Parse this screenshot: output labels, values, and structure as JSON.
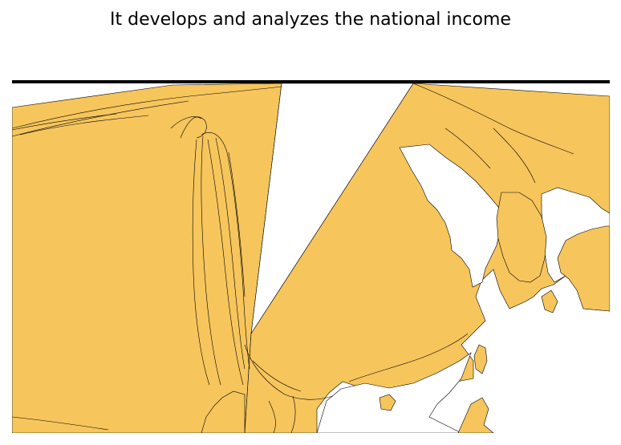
{
  "title": "It develops and analyzes the national income",
  "colors": {
    "land": "#f6c55c",
    "border": "#000000",
    "background": "#ffffff"
  }
}
